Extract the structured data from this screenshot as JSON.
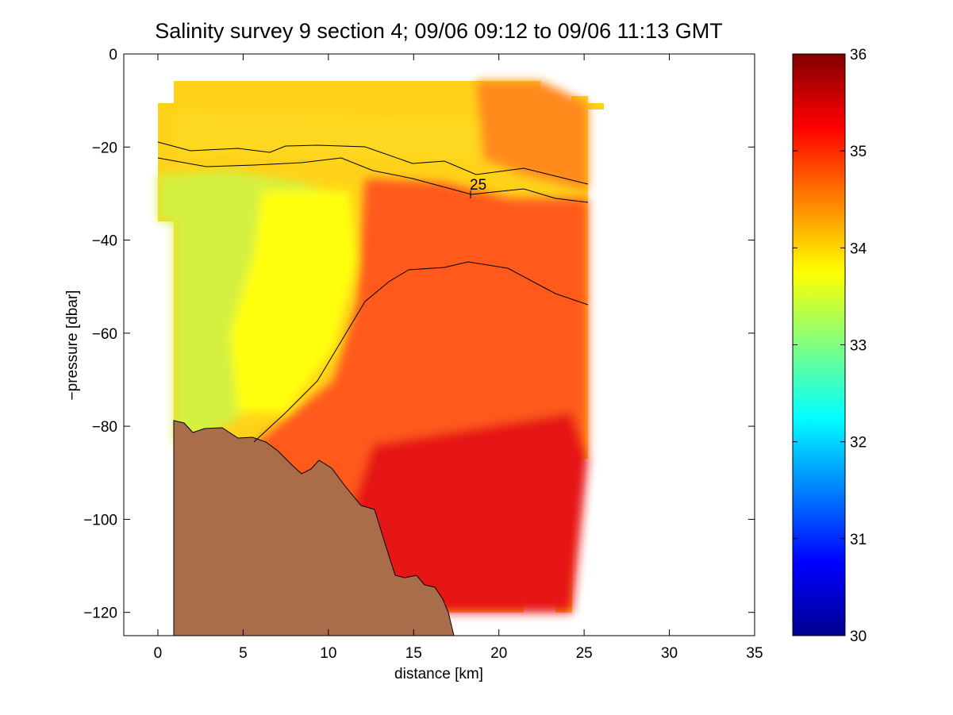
{
  "chart_data": {
    "type": "heatmap",
    "title": "Salinity survey 9 section 4; 09/06 09:12 to 09/06 11:13 GMT",
    "xlabel": "distance [km]",
    "ylabel": "−pressure [dbar]",
    "xlim": [
      -2,
      35
    ],
    "ylim": [
      -125,
      0
    ],
    "x_ticks": [
      0,
      5,
      10,
      15,
      20,
      25,
      30,
      35
    ],
    "x_tick_labels": [
      "0",
      "5",
      "10",
      "15",
      "20",
      "25",
      "30",
      "35"
    ],
    "y_ticks": [
      0,
      -20,
      -40,
      -60,
      -80,
      -100,
      -120
    ],
    "y_tick_labels": [
      "0",
      "−20",
      "−40",
      "−60",
      "−80",
      "−100",
      "−120"
    ],
    "colorbar": {
      "range": [
        30,
        36
      ],
      "ticks": [
        30,
        31,
        32,
        33,
        34,
        35,
        36
      ],
      "tick_labels": [
        "30",
        "31",
        "32",
        "33",
        "34",
        "35",
        "36"
      ],
      "colormap": "jet"
    },
    "contour_label": "25",
    "colors": {
      "bathymetry": "#a96d49",
      "contour_line": "#000000",
      "axes": "#000000"
    },
    "grid": false
  }
}
